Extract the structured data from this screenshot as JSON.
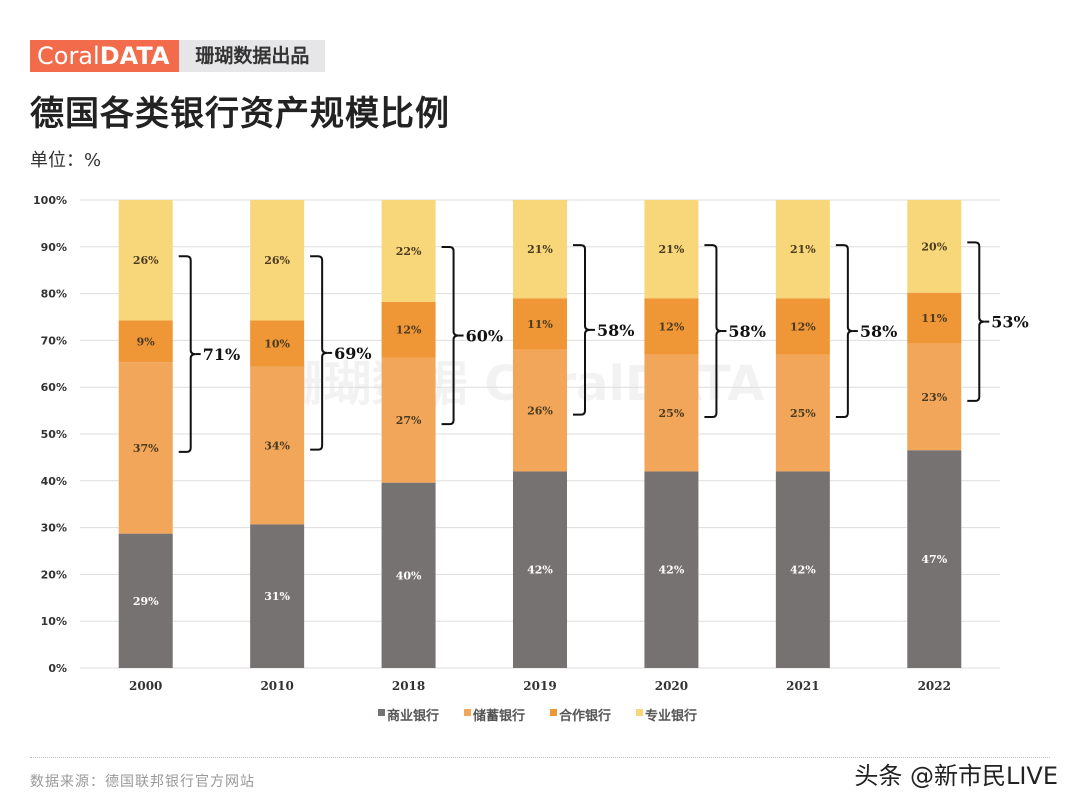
{
  "brand": {
    "logo_light": "Coral",
    "logo_bold": "DATA",
    "tagline": "珊瑚数据出品"
  },
  "title": "德国各类银行资产规模比例",
  "unit": "单位：%",
  "watermark": "珊瑚数据 CoralDATA",
  "source": "数据来源：德国联邦银行官方网站",
  "credit": "头条 @新市民LIVE",
  "chart_data": {
    "type": "bar",
    "stacked": true,
    "title": "德国各类银行资产规模比例",
    "ylabel": "单位：%",
    "ylim": [
      0,
      100
    ],
    "yticks": [
      "0%",
      "10%",
      "20%",
      "30%",
      "40%",
      "50%",
      "60%",
      "70%",
      "80%",
      "90%",
      "100%"
    ],
    "grid": true,
    "legend_position": "bottom",
    "categories": [
      "2000",
      "2010",
      "2018",
      "2019",
      "2020",
      "2021",
      "2022"
    ],
    "series": [
      {
        "name": "商业银行",
        "color": "#767271",
        "values": [
          29,
          31,
          40,
          42,
          42,
          42,
          47
        ]
      },
      {
        "name": "储蓄银行",
        "color": "#F2A65A",
        "values": [
          37,
          34,
          27,
          26,
          25,
          25,
          23
        ]
      },
      {
        "name": "合作银行",
        "color": "#EF9636",
        "values": [
          9,
          10,
          12,
          11,
          12,
          12,
          11
        ]
      },
      {
        "name": "专业银行",
        "color": "#F8D77A",
        "values": [
          26,
          26,
          22,
          21,
          21,
          21,
          20
        ]
      }
    ],
    "data_labels": [
      [
        "29%",
        "31%",
        "40%",
        "42%",
        "42%",
        "42%",
        "47%"
      ],
      [
        "37%",
        "34%",
        "27%",
        "26%",
        "25%",
        "25%",
        "23%"
      ],
      [
        "9%",
        "10%",
        "12%",
        "11%",
        "12%",
        "12%",
        "11%"
      ],
      [
        "26%",
        "26%",
        "22%",
        "21%",
        "21%",
        "21%",
        "20%"
      ]
    ],
    "bracket_labels": [
      "71%",
      "69%",
      "60%",
      "58%",
      "58%",
      "58%",
      "53%"
    ]
  }
}
